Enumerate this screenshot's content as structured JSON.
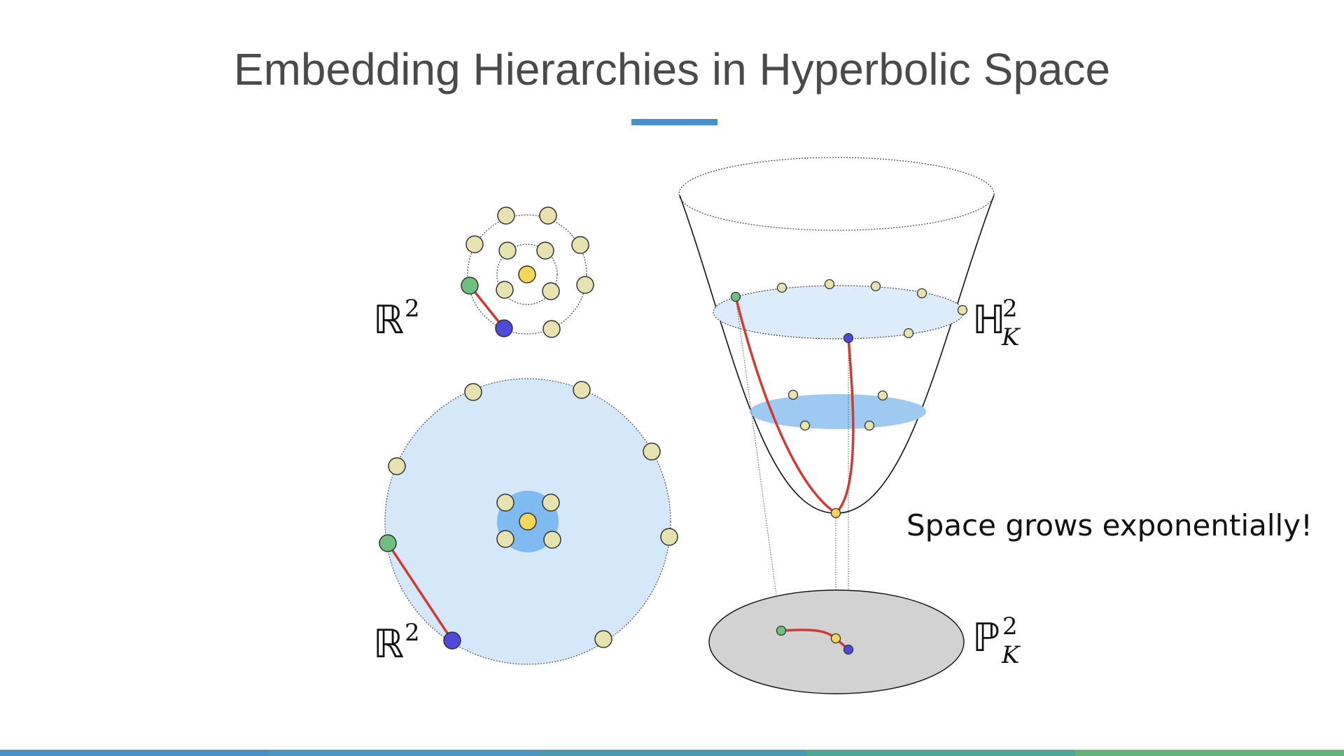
{
  "slide": {
    "title": "Embedding Hierarchies in Hyperbolic Space",
    "accent_color": "#4a90c8"
  },
  "labels": {
    "r2_top": {
      "letter": "ℝ",
      "sup": "2"
    },
    "r2_bottom": {
      "letter": "ℝ",
      "sup": "2"
    },
    "hyperboloid": {
      "letter": "ℍ",
      "sup": "2",
      "sub": "K"
    },
    "poincare": {
      "letter": "ℙ",
      "sup": "2",
      "sub": "K"
    },
    "caption": "Space grows exponentially!"
  },
  "colors": {
    "node_fill": "#e6e3b0",
    "root_fill": "#f4d65a",
    "green_node": "#6fc080",
    "blue_node": "#5048d8",
    "geodesic": "#d03a34",
    "disk_light": "#d4e8fa",
    "disk_inner": "#7fbaf0",
    "hyperboloid_slice_top": "#dcecfb",
    "hyperboloid_slice_mid": "#9ecaf2",
    "poincare_disk": "#d2d2d2"
  },
  "footer_colors": [
    "#4990c7",
    "#4a97c2",
    "#4a9bb0",
    "#4fa79a",
    "#66b27c"
  ]
}
